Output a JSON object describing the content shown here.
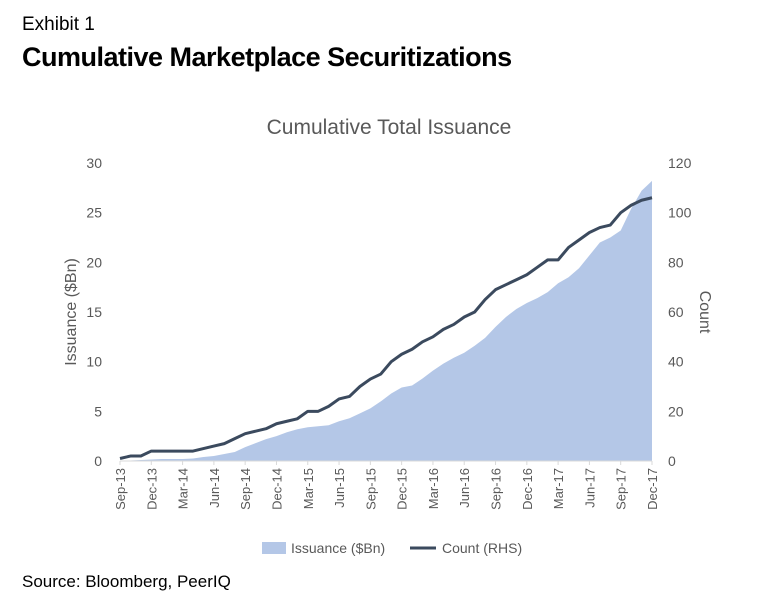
{
  "header": {
    "exhibit": "Exhibit 1",
    "title": "Cumulative Marketplace Securitizations"
  },
  "footer": {
    "source": "Source: Bloomberg, PeerIQ"
  },
  "colors": {
    "area": "#b4c7e7",
    "line": "#3b4a5e",
    "text": "#595959"
  },
  "chart_data": {
    "type": "area",
    "title": "Cumulative Total Issuance",
    "ylabel": "Issuance ($Bn)",
    "y2label": "Count",
    "ylim": [
      0,
      30
    ],
    "y2lim": [
      0,
      120
    ],
    "yticks": [
      0,
      5,
      10,
      15,
      20,
      25,
      30
    ],
    "y2ticks": [
      0,
      20,
      40,
      60,
      80,
      100,
      120
    ],
    "x_tick_labels": [
      "Sep-13",
      "Dec-13",
      "Mar-14",
      "Jun-14",
      "Sep-14",
      "Dec-14",
      "Mar-15",
      "Jun-15",
      "Sep-15",
      "Dec-15",
      "Mar-16",
      "Jun-16",
      "Sep-16",
      "Dec-16",
      "Mar-17",
      "Jun-17",
      "Sep-17",
      "Dec-17"
    ],
    "legend_position": "bottom",
    "x": [
      "Sep-13",
      "Oct-13",
      "Nov-13",
      "Dec-13",
      "Jan-14",
      "Feb-14",
      "Mar-14",
      "Apr-14",
      "May-14",
      "Jun-14",
      "Jul-14",
      "Aug-14",
      "Sep-14",
      "Oct-14",
      "Nov-14",
      "Dec-14",
      "Jan-15",
      "Feb-15",
      "Mar-15",
      "Apr-15",
      "May-15",
      "Jun-15",
      "Jul-15",
      "Aug-15",
      "Sep-15",
      "Oct-15",
      "Nov-15",
      "Dec-15",
      "Jan-16",
      "Feb-16",
      "Mar-16",
      "Apr-16",
      "May-16",
      "Jun-16",
      "Jul-16",
      "Aug-16",
      "Sep-16",
      "Oct-16",
      "Nov-16",
      "Dec-16",
      "Jan-17",
      "Feb-17",
      "Mar-17",
      "Apr-17",
      "May-17",
      "Jun-17",
      "Jul-17",
      "Aug-17",
      "Sep-17",
      "Oct-17",
      "Nov-17",
      "Dec-17"
    ],
    "series": [
      {
        "name": "Issuance ($Bn)",
        "type": "area",
        "axis": "left",
        "values": [
          0,
          0.05,
          0.1,
          0.15,
          0.2,
          0.2,
          0.2,
          0.25,
          0.4,
          0.5,
          0.7,
          0.9,
          1.4,
          1.8,
          2.2,
          2.5,
          2.9,
          3.2,
          3.4,
          3.5,
          3.6,
          4.0,
          4.3,
          4.8,
          5.3,
          6.0,
          6.8,
          7.4,
          7.6,
          8.3,
          9.1,
          9.8,
          10.4,
          10.9,
          11.6,
          12.4,
          13.5,
          14.5,
          15.3,
          15.9,
          16.4,
          17.0,
          17.9,
          18.5,
          19.4,
          20.7,
          22.0,
          22.5,
          23.2,
          25.4,
          27.2,
          28.2
        ]
      },
      {
        "name": "Count (RHS)",
        "type": "line",
        "axis": "right",
        "values": [
          1,
          2,
          2,
          4,
          4,
          4,
          4,
          4,
          5,
          6,
          7,
          9,
          11,
          12,
          13,
          15,
          16,
          17,
          20,
          20,
          22,
          25,
          26,
          30,
          33,
          35,
          40,
          43,
          45,
          48,
          50,
          53,
          55,
          58,
          60,
          65,
          69,
          71,
          73,
          75,
          78,
          81,
          81,
          86,
          89,
          92,
          94,
          95,
          100,
          103,
          105,
          106
        ]
      }
    ]
  }
}
